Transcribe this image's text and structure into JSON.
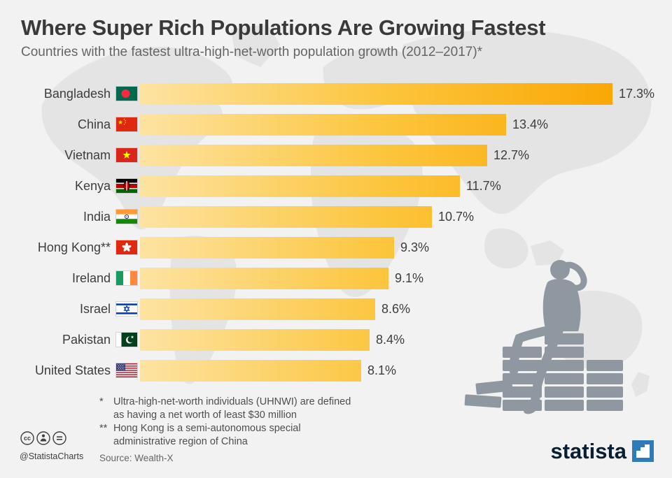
{
  "header": {
    "title": "Where Super Rich Populations Are Growing Fastest",
    "subtitle": "Countries with the fastest ultra-high-net-worth population growth (2012–2017)*"
  },
  "chart_data": {
    "type": "bar",
    "orientation": "horizontal",
    "unit": "%",
    "xlim": [
      0,
      17.3
    ],
    "grid": false,
    "legend": false,
    "categories": [
      "Bangladesh",
      "China",
      "Vietnam",
      "Kenya",
      "India",
      "Hong Kong**",
      "Ireland",
      "Israel",
      "Pakistan",
      "United States"
    ],
    "values": [
      17.3,
      13.4,
      12.7,
      11.7,
      10.7,
      9.3,
      9.1,
      8.6,
      8.4,
      8.1
    ],
    "value_labels": [
      "17.3%",
      "13.4%",
      "12.7%",
      "11.7%",
      "10.7%",
      "9.3%",
      "9.1%",
      "8.6%",
      "8.4%",
      "8.1%"
    ],
    "flags": [
      "bangladesh",
      "china",
      "vietnam",
      "kenya",
      "india",
      "hong-kong",
      "ireland",
      "israel",
      "pakistan",
      "united-states"
    ],
    "bar_gradient": [
      "#fde3a2",
      "#fcc63f",
      "#faa805"
    ]
  },
  "footnotes": {
    "f1_mark": "*",
    "f1_line1": "Ultra-high-net-worth individuals (UHNWI) are defined",
    "f1_line2": "as having a net worth of least $30 million",
    "f2_mark": "**",
    "f2_line1": "Hong Kong is a semi-autonomous special",
    "f2_line2": "administrative region of China"
  },
  "footer": {
    "source": "Source: Wealth-X",
    "credit_handle": "@StatistaCharts",
    "logo_text": "statista"
  }
}
